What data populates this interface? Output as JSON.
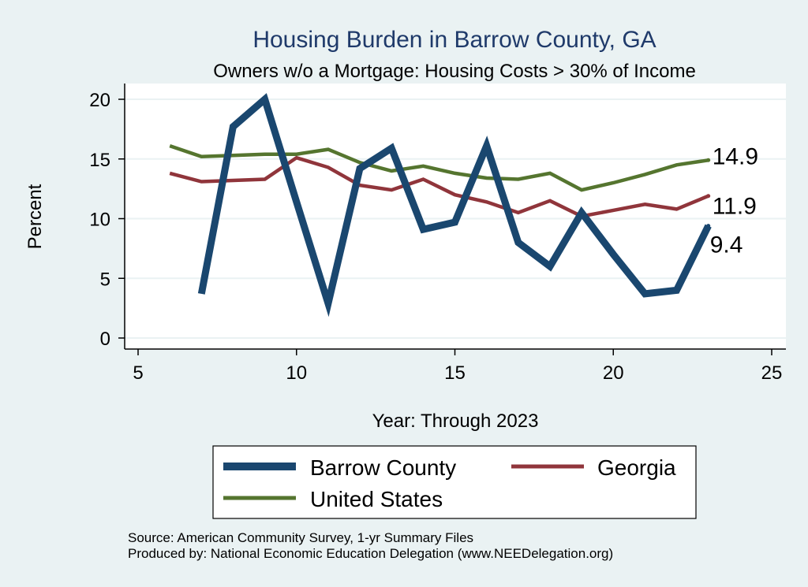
{
  "chart_data": {
    "type": "line",
    "title": "Housing Burden in Barrow County, GA",
    "subtitle": "Owners w/o a Mortgage: Housing Costs > 30% of Income",
    "xlabel": "Year: Through 2023",
    "ylabel": "Percent",
    "xlim": [
      5,
      25
    ],
    "ylim": [
      0,
      20
    ],
    "xticks": [
      5,
      10,
      15,
      20,
      25
    ],
    "yticks": [
      0,
      5,
      10,
      15,
      20
    ],
    "grid": true,
    "legend_position": "bottom",
    "series": [
      {
        "name": "Barrow County",
        "color": "#1a476f",
        "x": [
          7,
          8,
          9,
          10,
          11,
          12,
          13,
          14,
          15,
          16,
          17,
          18,
          19,
          20,
          21,
          22,
          23
        ],
        "values": [
          3.7,
          17.7,
          20.0,
          11.4,
          2.9,
          14.2,
          15.9,
          9.1,
          9.7,
          16.1,
          8.0,
          6.0,
          10.5,
          7.0,
          3.7,
          4.0,
          9.4
        ],
        "end_label": "9.4"
      },
      {
        "name": "Georgia",
        "color": "#90353b",
        "x": [
          6,
          7,
          8,
          9,
          10,
          11,
          12,
          13,
          14,
          15,
          16,
          17,
          18,
          19,
          20,
          21,
          22,
          23
        ],
        "values": [
          13.8,
          13.1,
          13.2,
          13.3,
          15.1,
          14.3,
          12.8,
          12.4,
          13.3,
          12.0,
          11.4,
          10.5,
          11.5,
          10.2,
          10.7,
          11.2,
          10.8,
          11.9
        ],
        "end_label": "11.9"
      },
      {
        "name": "United States",
        "color": "#55752f",
        "x": [
          6,
          7,
          8,
          9,
          10,
          11,
          12,
          13,
          14,
          15,
          16,
          17,
          18,
          19,
          20,
          21,
          22,
          23
        ],
        "values": [
          16.1,
          15.2,
          15.3,
          15.4,
          15.4,
          15.8,
          14.7,
          14.0,
          14.4,
          13.8,
          13.4,
          13.3,
          13.8,
          12.4,
          13.0,
          13.7,
          14.5,
          14.9
        ],
        "end_label": "14.9"
      }
    ],
    "source_lines": [
      "Source: American Community Survey, 1-yr Summary Files",
      "Produced by: National Economic Education Delegation (www.NEEDelegation.org)"
    ]
  }
}
